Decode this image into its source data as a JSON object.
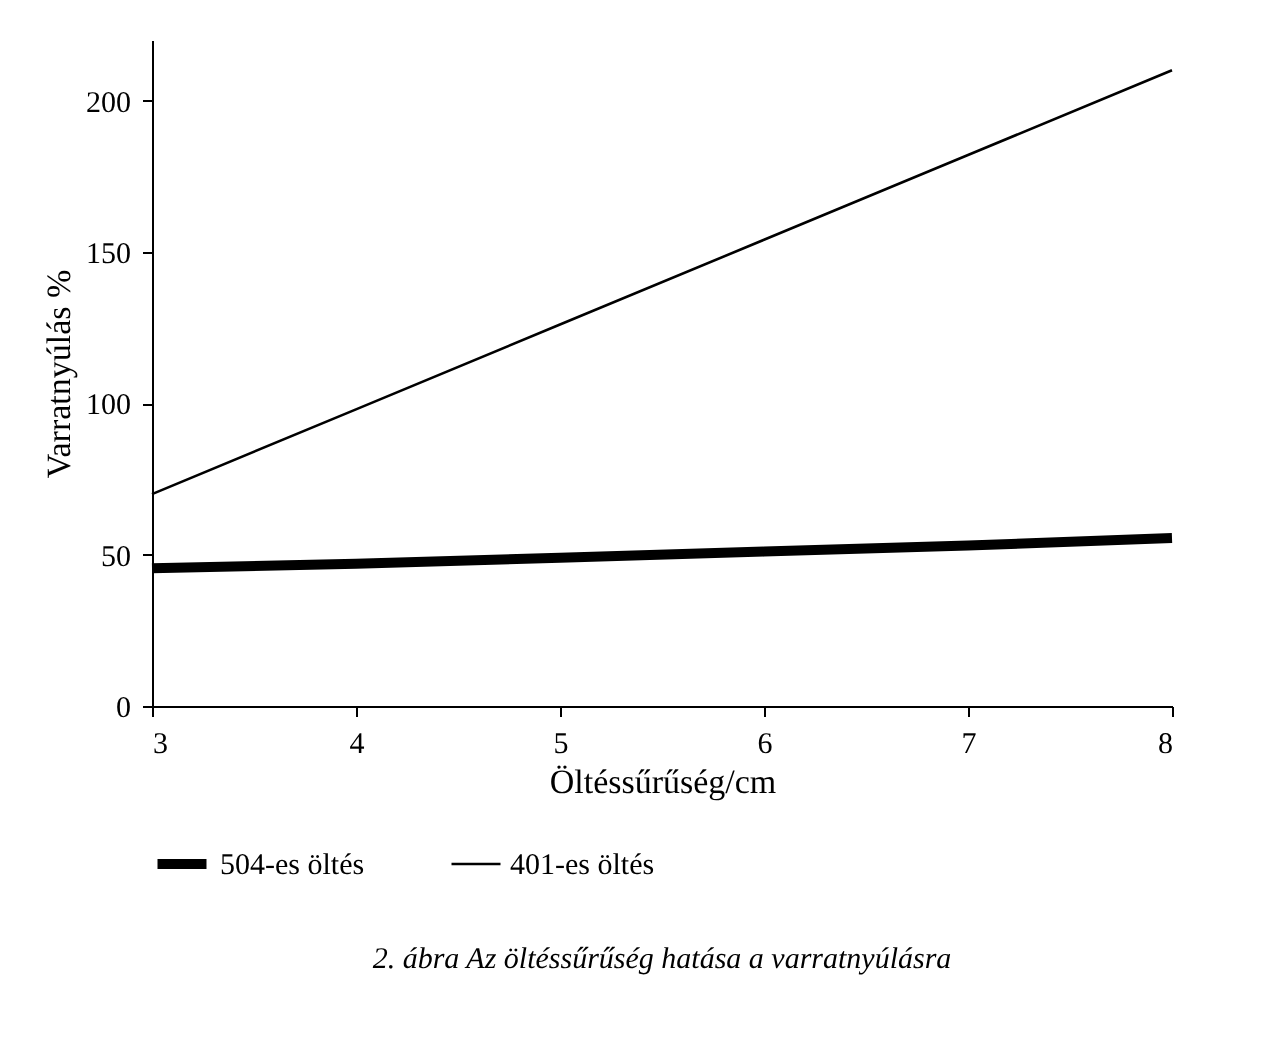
{
  "chart_data": {
    "type": "line",
    "xlabel": "Öltéssűrűség/cm",
    "ylabel": "Varratnyúlás %",
    "x": [
      3,
      4,
      5,
      6,
      7,
      8
    ],
    "series": [
      {
        "name": "504-es öltés",
        "color": "#000000",
        "values": [
          45.5,
          47,
          49,
          51,
          53,
          55.5
        ]
      },
      {
        "name": "401-es öltés",
        "color": "#000000",
        "values": [
          70,
          98,
          126,
          154,
          182,
          210
        ]
      }
    ],
    "xlim": [
      3,
      8
    ],
    "xticks": [
      3,
      4,
      5,
      6,
      7,
      8
    ],
    "ylim": [
      0,
      220
    ],
    "yticks": [
      0,
      50,
      100,
      150,
      200
    ],
    "grid": false,
    "legend": "bottom",
    "marker": "none",
    "line_style": "solid",
    "annotations": [
      "2. ábra  Az öltéssűrűség hatása a varratnyúlásra"
    ]
  }
}
